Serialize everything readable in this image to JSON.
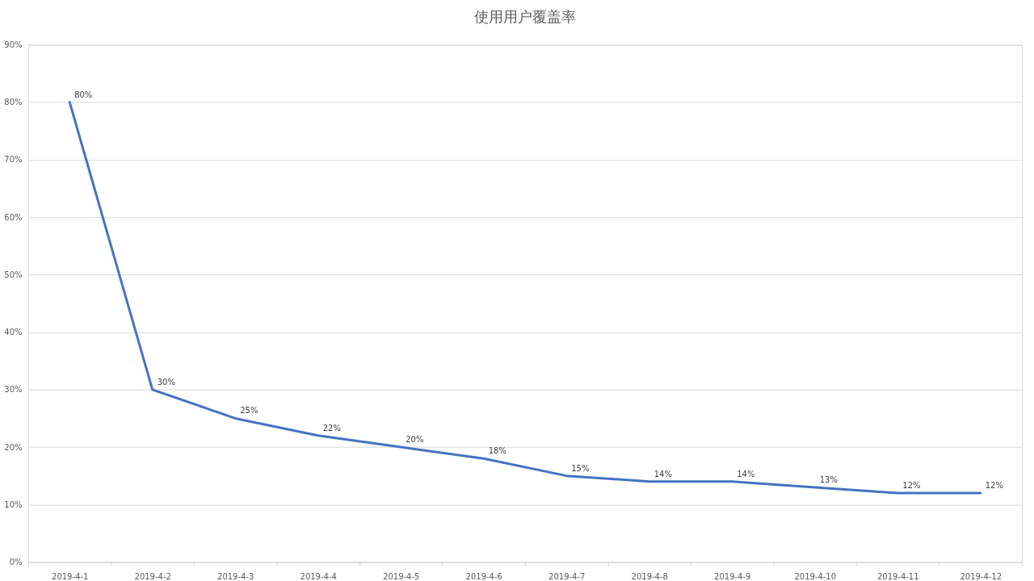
{
  "chart_data": {
    "type": "line",
    "title": "使用用户覆盖率",
    "categories": [
      "2019-4-1",
      "2019-4-2",
      "2019-4-3",
      "2019-4-4",
      "2019-4-5",
      "2019-4-6",
      "2019-4-7",
      "2019-4-8",
      "2019-4-9",
      "2019-4-10",
      "2019-4-11",
      "2019-4-12"
    ],
    "values": [
      80,
      30,
      25,
      22,
      20,
      18,
      15,
      14,
      14,
      13,
      12,
      12
    ],
    "value_labels": [
      "80%",
      "30%",
      "25%",
      "22%",
      "20%",
      "18%",
      "15%",
      "14%",
      "14%",
      "13%",
      "12%",
      "12%"
    ],
    "color": "#4472c4",
    "ylim": [
      0,
      90
    ],
    "yticks": [
      {
        "value": 0,
        "label": "0%"
      },
      {
        "value": 10,
        "label": "10%"
      },
      {
        "value": 20,
        "label": "20%"
      },
      {
        "value": 30,
        "label": "30%"
      },
      {
        "value": 40,
        "label": "40%"
      },
      {
        "value": 50,
        "label": "50%"
      },
      {
        "value": 60,
        "label": "60%"
      },
      {
        "value": 70,
        "label": "70%"
      },
      {
        "value": 80,
        "label": "80%"
      },
      {
        "value": 90,
        "label": "90%"
      }
    ],
    "grid": "y",
    "marker": "none",
    "line_style": "solid"
  }
}
